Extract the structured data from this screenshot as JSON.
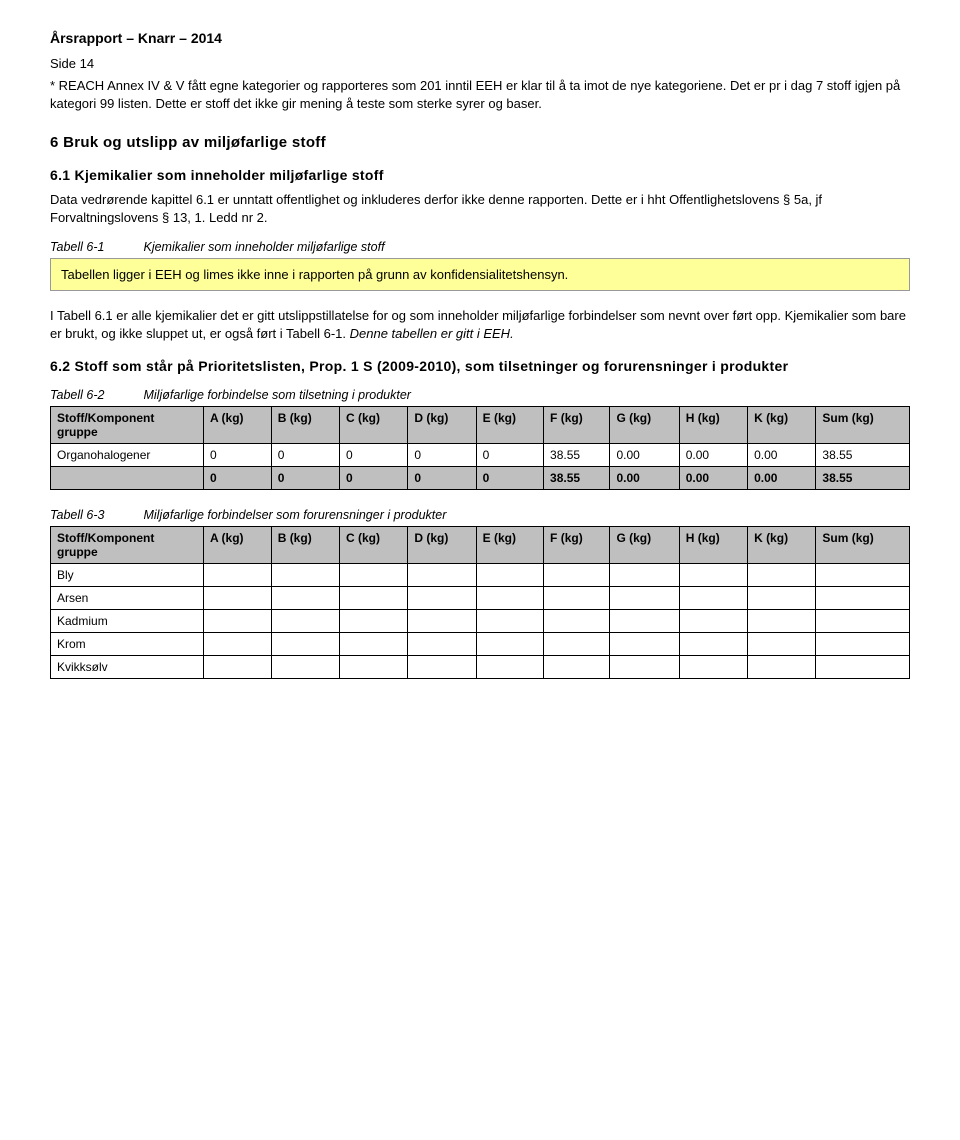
{
  "header": {
    "title": "Årsrapport – Knarr – 2014",
    "page_label": "Side 14"
  },
  "intro": {
    "para1": "* REACH Annex IV & V fått egne kategorier og rapporteres som 201 inntil EEH er klar til å ta imot de nye kategoriene. Det er pr i dag 7 stoff igjen på kategori 99 listen. Dette er stoff det ikke gir mening å teste som sterke syrer og baser."
  },
  "section6": {
    "heading": "6  Bruk og utslipp av miljøfarlige stoff",
    "sub61_heading": "6.1  Kjemikalier som inneholder miljøfarlige stoff",
    "sub61_para": "Data vedrørende kapittel 6.1 er unntatt offentlighet og inkluderes derfor ikke denne rapporten. Dette er i hht Offentlighetslovens § 5a, jf Forvaltningslovens § 13, 1. Ledd nr 2.",
    "table61_ref": "Tabell 6-1",
    "table61_caption": "Kjemikalier som inneholder miljøfarlige stoff",
    "highlight_text": "Tabellen ligger i EEH og limes ikke inne i rapporten på grunn av konfidensialitetshensyn.",
    "after_box_para": "I Tabell 6.1 er alle kjemikalier det er gitt utslippstillatelse for og som inneholder miljøfarlige forbindelser som nevnt over ført opp. Kjemikalier som bare er brukt, og ikke sluppet ut, er også ført i Tabell 6-1. ",
    "after_box_para_italic": "Denne tabellen er gitt i EEH.",
    "sub62_heading": "6.2  Stoff som står på Prioritetslisten, Prop. 1 S (2009-2010), som tilsetninger og forurensninger i produkter",
    "table62_ref": "Tabell 6-2",
    "table62_caption": "Miljøfarlige forbindelse som tilsetning i produkter",
    "table62": {
      "columns": [
        "Stoff/Komponent gruppe",
        "A (kg)",
        "B (kg)",
        "C (kg)",
        "D (kg)",
        "E (kg)",
        "F (kg)",
        "G (kg)",
        "H (kg)",
        "K (kg)",
        "Sum (kg)"
      ],
      "rows": [
        [
          "Organohalogener",
          "0",
          "0",
          "0",
          "0",
          "0",
          "38.55",
          "0.00",
          "0.00",
          "0.00",
          "38.55"
        ]
      ],
      "total_row": [
        "",
        "0",
        "0",
        "0",
        "0",
        "0",
        "38.55",
        "0.00",
        "0.00",
        "0.00",
        "38.55"
      ]
    },
    "table63_ref": "Tabell 6-3",
    "table63_caption": "Miljøfarlige forbindelser som forurensninger i produkter",
    "table63": {
      "columns": [
        "Stoff/Komponent gruppe",
        "A (kg)",
        "B (kg)",
        "C (kg)",
        "D (kg)",
        "E (kg)",
        "F (kg)",
        "G (kg)",
        "H (kg)",
        "K (kg)",
        "Sum (kg)"
      ],
      "rows": [
        [
          "Bly",
          "",
          "",
          "",
          "",
          "",
          "",
          "",
          "",
          "",
          ""
        ],
        [
          "Arsen",
          "",
          "",
          "",
          "",
          "",
          "",
          "",
          "",
          "",
          ""
        ],
        [
          "Kadmium",
          "",
          "",
          "",
          "",
          "",
          "",
          "",
          "",
          "",
          ""
        ],
        [
          "Krom",
          "",
          "",
          "",
          "",
          "",
          "",
          "",
          "",
          "",
          ""
        ],
        [
          "Kvikksølv",
          "",
          "",
          "",
          "",
          "",
          "",
          "",
          "",
          "",
          ""
        ]
      ]
    }
  }
}
